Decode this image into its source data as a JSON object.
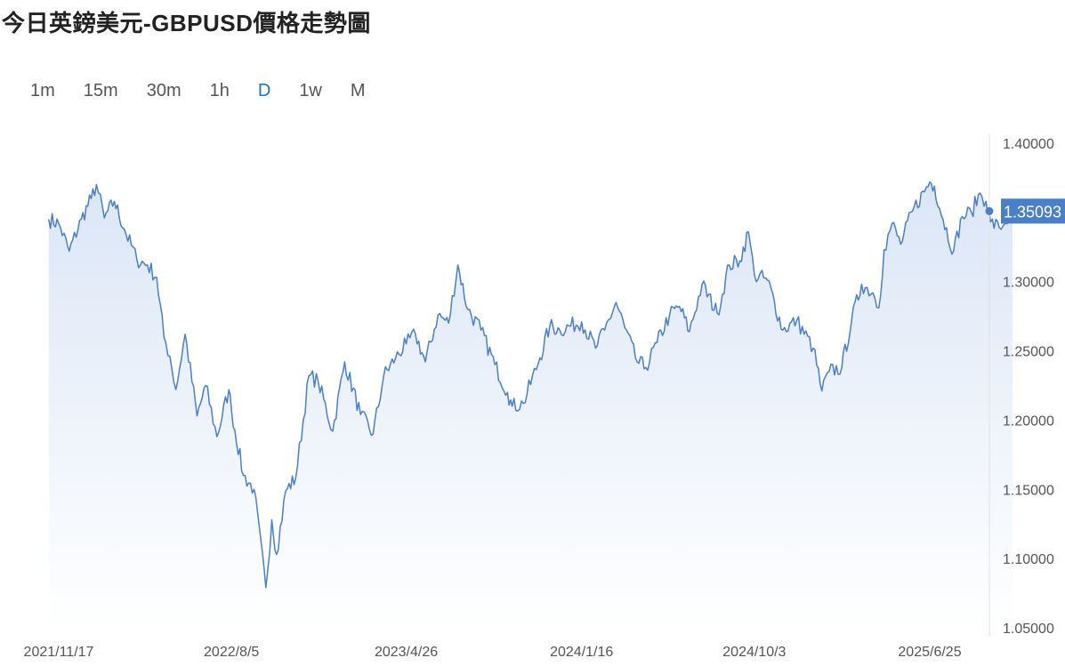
{
  "page": {
    "title": "今日英鎊美元-GBPUSD價格走勢圖"
  },
  "timeframes": [
    {
      "label": "1m",
      "active": false
    },
    {
      "label": "15m",
      "active": false
    },
    {
      "label": "30m",
      "active": false
    },
    {
      "label": "1h",
      "active": false
    },
    {
      "label": "D",
      "active": true
    },
    {
      "label": "1w",
      "active": false
    },
    {
      "label": "M",
      "active": false
    }
  ],
  "colors": {
    "line": "#4a7fc9",
    "area_top": "#dbe6f6",
    "area_bottom": "#ffffff",
    "accent": "#1a73c8",
    "price_tag": "#4a7fc9"
  },
  "chart_data": {
    "type": "area",
    "ylim": [
      1.05,
      1.4
    ],
    "y_ticks": [
      "1.40000",
      "1.35000",
      "1.30000",
      "1.25000",
      "1.20000",
      "1.15000",
      "1.10000",
      "1.05000"
    ],
    "y_tick_values": [
      1.4,
      1.35,
      1.3,
      1.25,
      1.2,
      1.15,
      1.1,
      1.05
    ],
    "x_ticks": [
      "2021/11/17",
      "2022/8/5",
      "2023/4/26",
      "2024/1/16",
      "2024/10/3",
      "2025/6/25"
    ],
    "x_tick_values": [
      "2021-11-17",
      "2022-08-05",
      "2023-04-26",
      "2024-01-16",
      "2024-10-03",
      "2025-06-25"
    ],
    "grid": false,
    "last_price_label": "1.35093",
    "last_price": 1.35093,
    "series": [
      {
        "x": [
          "2021-11-02",
          "2021-11-17",
          "2021-12-03",
          "2021-12-21",
          "2022-01-05",
          "2022-01-13",
          "2022-01-25",
          "2022-02-09",
          "2022-02-24",
          "2022-03-15",
          "2022-03-31",
          "2022-04-14",
          "2022-04-25",
          "2022-05-04",
          "2022-05-13",
          "2022-05-27",
          "2022-06-14",
          "2022-06-27",
          "2022-07-14",
          "2022-08-01",
          "2022-08-05",
          "2022-08-23",
          "2022-09-08",
          "2022-09-26",
          "2022-10-05",
          "2022-10-12",
          "2022-10-26",
          "2022-11-10",
          "2022-11-30",
          "2022-12-14",
          "2023-01-05",
          "2023-01-23",
          "2023-02-16",
          "2023-03-07",
          "2023-03-23",
          "2023-04-10",
          "2023-04-26",
          "2023-05-10",
          "2023-05-25",
          "2023-06-13",
          "2023-06-29",
          "2023-07-13",
          "2023-07-28",
          "2023-08-17",
          "2023-09-07",
          "2023-09-26",
          "2023-10-03",
          "2023-10-20",
          "2023-11-14",
          "2023-11-29",
          "2023-12-14",
          "2024-01-16",
          "2024-02-06",
          "2024-02-20",
          "2024-03-08",
          "2024-03-21",
          "2024-04-09",
          "2024-04-22",
          "2024-05-09",
          "2024-05-28",
          "2024-06-12",
          "2024-06-27",
          "2024-07-16",
          "2024-08-08",
          "2024-08-26",
          "2024-09-11",
          "2024-09-24",
          "2024-10-03",
          "2024-10-23",
          "2024-11-15",
          "2024-12-06",
          "2024-12-31",
          "2025-01-13",
          "2025-01-24",
          "2025-02-12",
          "2025-02-27",
          "2025-03-14",
          "2025-03-31",
          "2025-04-09",
          "2025-04-17",
          "2025-04-29",
          "2025-05-12",
          "2025-05-30",
          "2025-06-25",
          "2025-07-02",
          "2025-07-15",
          "2025-07-31",
          "2025-08-13",
          "2025-08-27",
          "2025-09-09",
          "2025-09-18",
          "2025-09-25",
          "2025-10-08",
          "2025-10-17",
          "2025-10-28"
        ],
        "values": [
          1.345,
          1.342,
          1.322,
          1.345,
          1.36,
          1.37,
          1.346,
          1.358,
          1.338,
          1.316,
          1.312,
          1.303,
          1.26,
          1.246,
          1.222,
          1.262,
          1.203,
          1.225,
          1.188,
          1.222,
          1.207,
          1.16,
          1.15,
          1.079,
          1.128,
          1.103,
          1.149,
          1.158,
          1.232,
          1.228,
          1.192,
          1.242,
          1.204,
          1.19,
          1.232,
          1.245,
          1.255,
          1.262,
          1.242,
          1.276,
          1.27,
          1.312,
          1.28,
          1.265,
          1.24,
          1.22,
          1.21,
          1.212,
          1.245,
          1.268,
          1.265,
          1.271,
          1.252,
          1.265,
          1.285,
          1.267,
          1.242,
          1.238,
          1.256,
          1.276,
          1.282,
          1.264,
          1.298,
          1.277,
          1.312,
          1.315,
          1.336,
          1.305,
          1.301,
          1.265,
          1.272,
          1.252,
          1.221,
          1.235,
          1.238,
          1.272,
          1.298,
          1.292,
          1.281,
          1.323,
          1.342,
          1.327,
          1.351,
          1.372,
          1.369,
          1.345,
          1.322,
          1.347,
          1.35,
          1.364,
          1.358,
          1.343,
          1.339,
          1.342,
          1.351
        ]
      }
    ]
  }
}
